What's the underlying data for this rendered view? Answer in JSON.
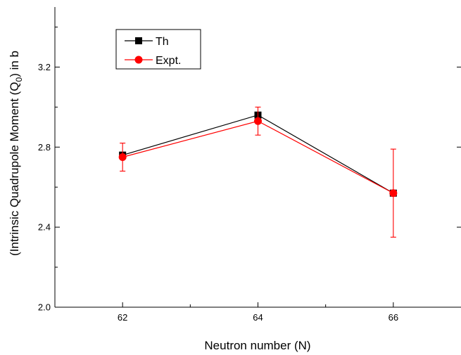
{
  "chart_data": {
    "type": "line",
    "xlabel": "Neutron number (N)",
    "ylabel": {
      "before": "(Intrinsic Quadrupole Moment (Q",
      "sub": "0",
      "after": ") in b"
    },
    "xlim": [
      61.0,
      67.0
    ],
    "ylim": [
      2.0,
      3.5
    ],
    "xticks": [
      62,
      64,
      66
    ],
    "yticks": [
      2.0,
      2.4,
      2.8,
      3.2
    ],
    "ytick_labels": [
      "2.0",
      "2.4",
      "2.8",
      "3.2"
    ],
    "grid": false,
    "legend_position": "top-left",
    "series": [
      {
        "name": "Th",
        "color": "#000000",
        "marker": "square",
        "x": [
          62,
          64,
          66
        ],
        "y": [
          2.76,
          2.96,
          2.57
        ]
      },
      {
        "name": "Expt.",
        "color": "#ff0000",
        "marker": "circle",
        "x": [
          62,
          64,
          66
        ],
        "y": [
          2.75,
          2.93,
          2.57
        ],
        "error": [
          0.07,
          0.07,
          0.22
        ]
      }
    ]
  }
}
